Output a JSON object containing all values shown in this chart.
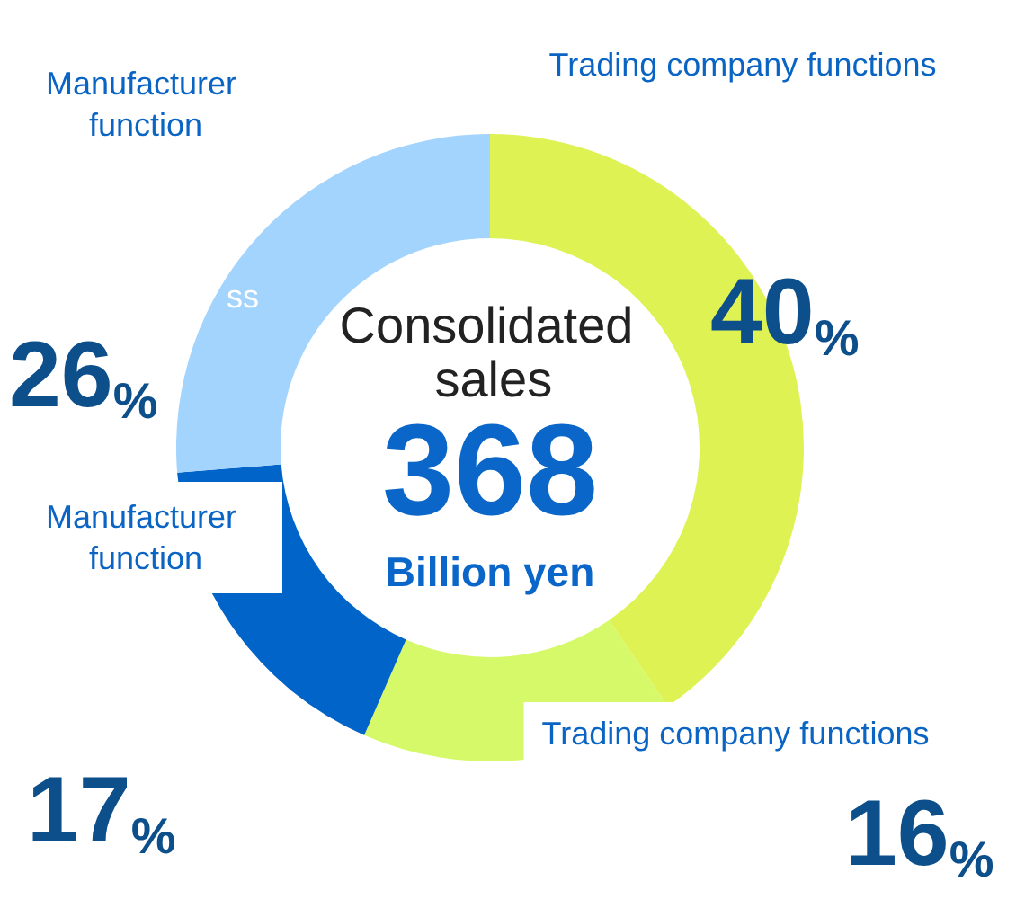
{
  "chart_data": {
    "type": "donut",
    "title": "Consolidated sales",
    "subtitle": "368 Billion yen",
    "categories": [
      "Trading company functions",
      "Trading company functions",
      "Manufacturer function",
      "Manufacturer function"
    ],
    "values": [
      40,
      16,
      17,
      26
    ],
    "colors": [
      "#dff254",
      "#d6f96a",
      "#0064c8",
      "#a3d4fd"
    ],
    "value_labels": [
      "40%",
      "16%",
      "17%",
      "26%"
    ],
    "annotations": [
      "ss"
    ]
  }
}
